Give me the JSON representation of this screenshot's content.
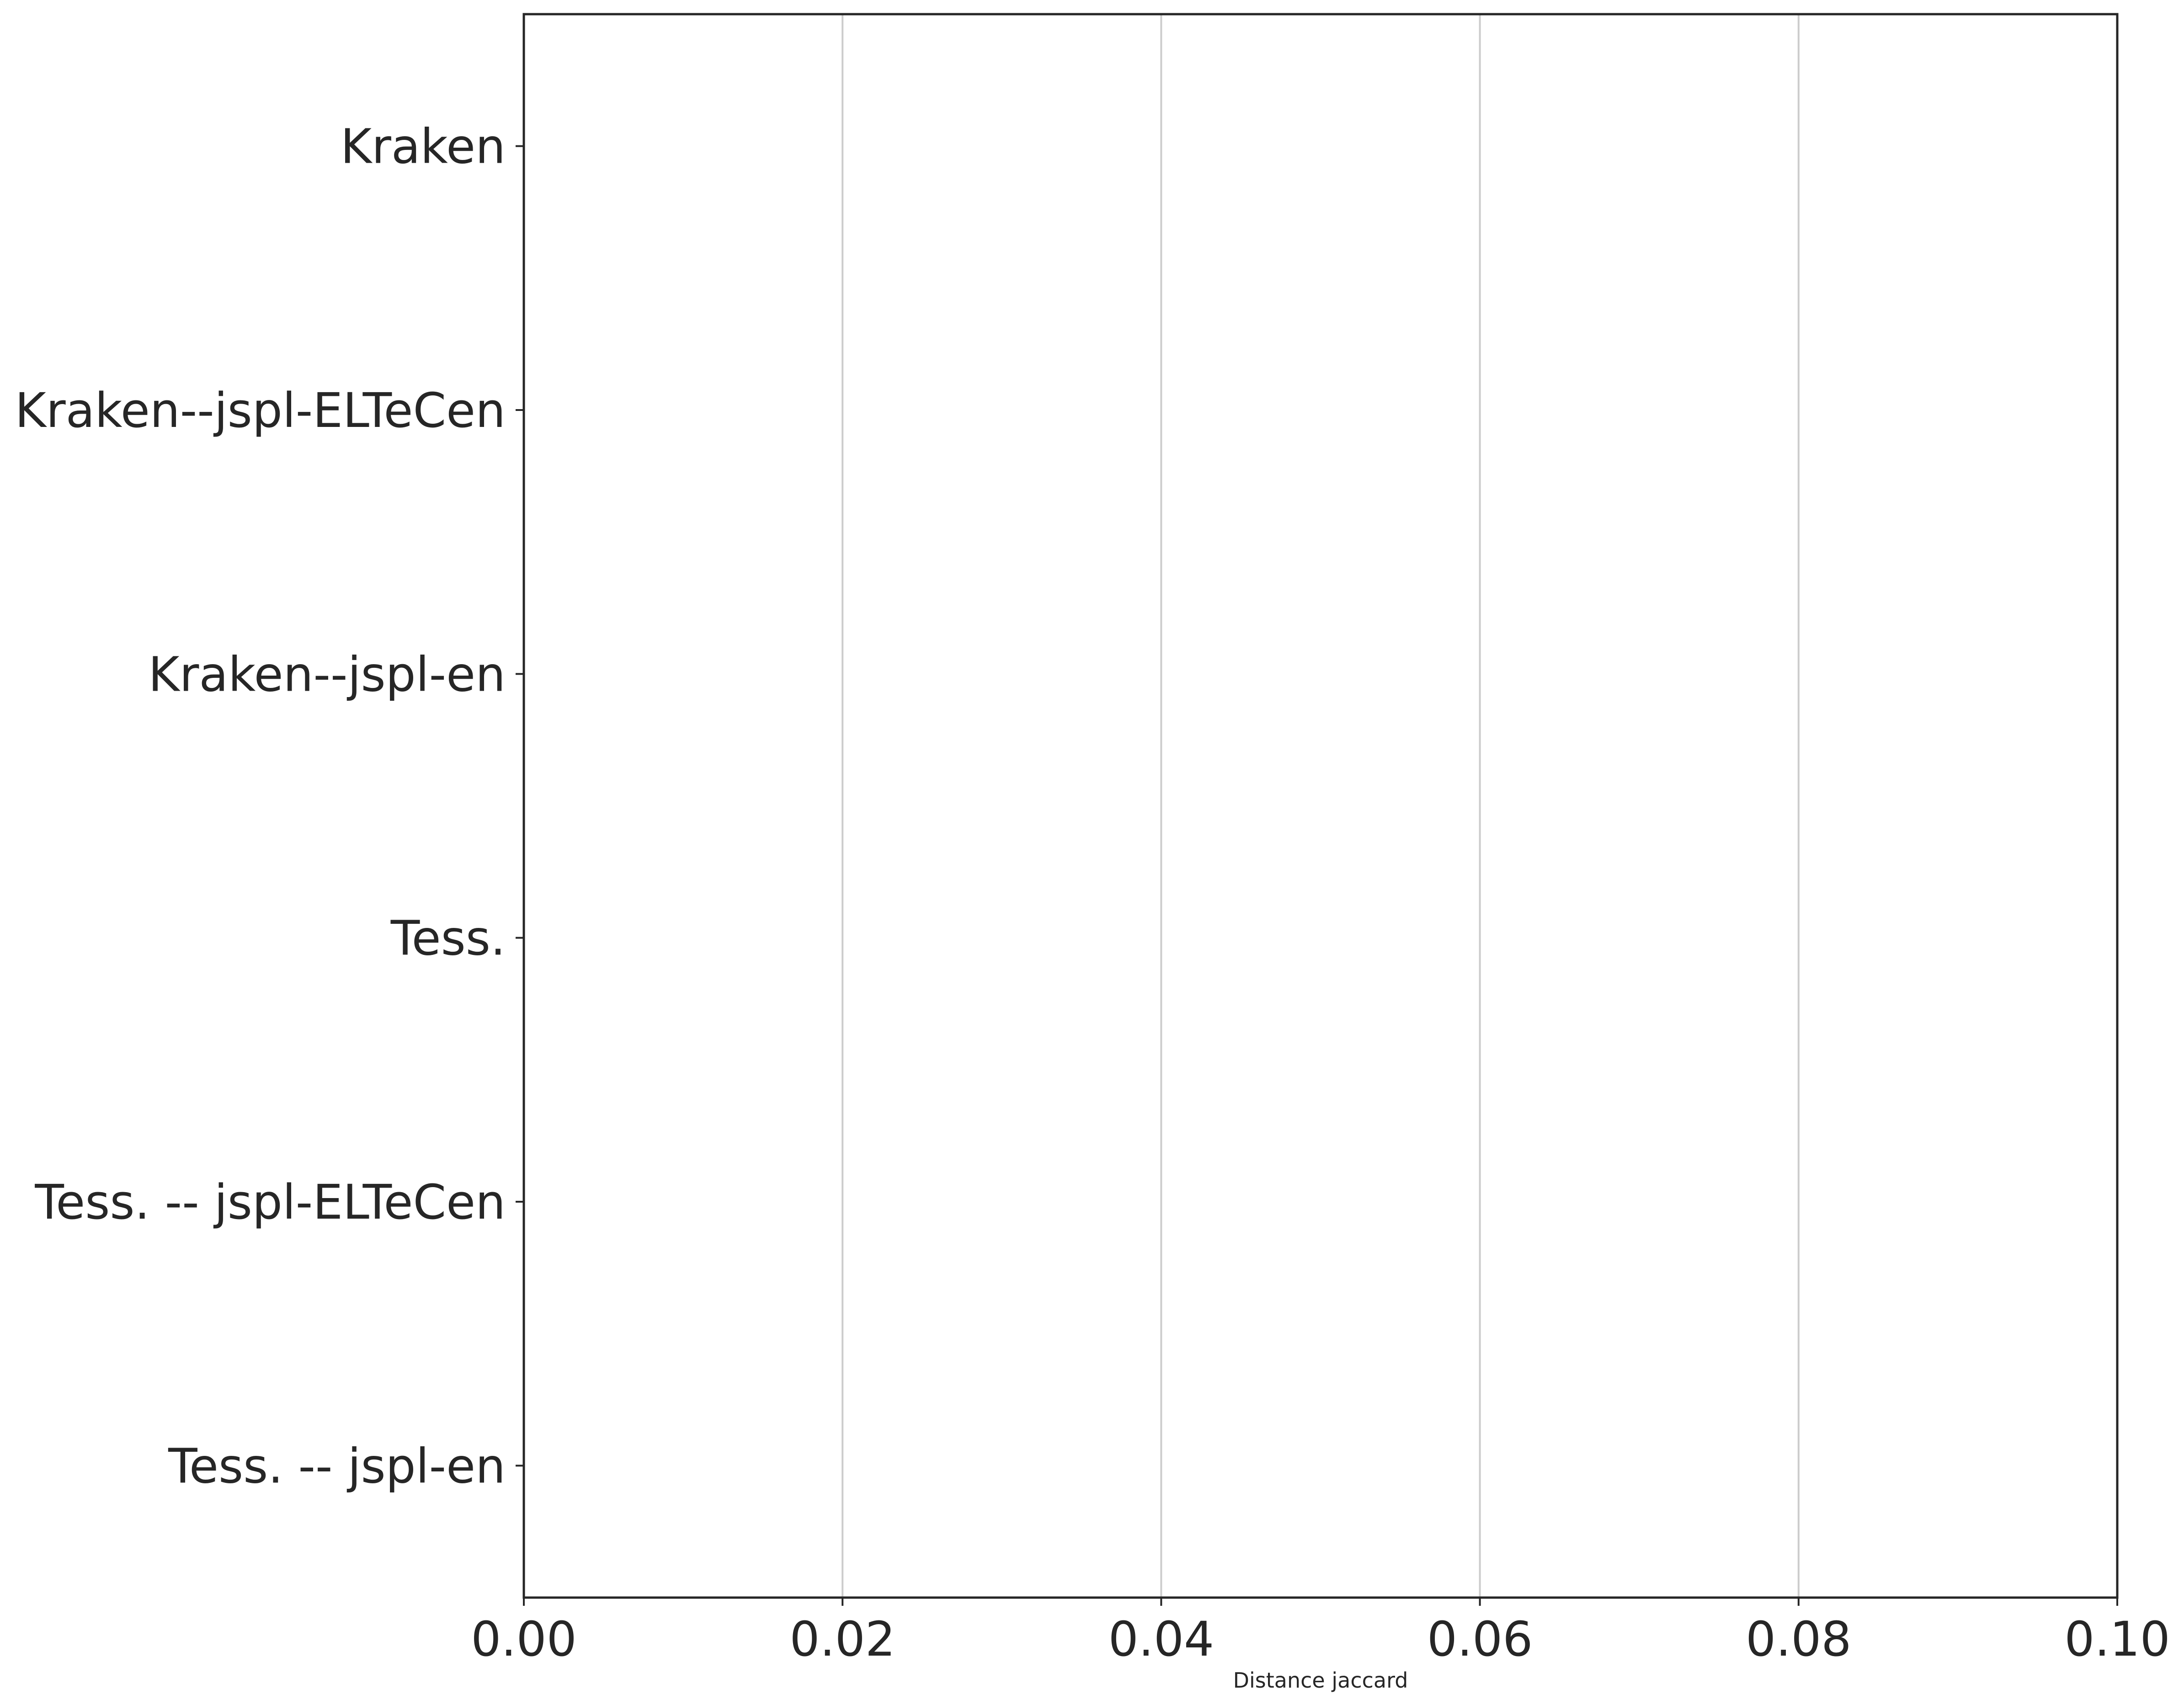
{
  "chart_data": {
    "type": "bar",
    "orientation": "horizontal",
    "categories": [
      "Kraken",
      "Kraken--jspl-ELTeCen",
      "Kraken--jspl-en",
      "Tess.",
      "Tess. -- jspl-ELTeCen",
      "Tess. -- jspl-en"
    ],
    "values": [
      0,
      0,
      0,
      0,
      0,
      0
    ],
    "xlabel": "Distance jaccard",
    "ylabel": "",
    "xlim": [
      0.0,
      0.1
    ],
    "xticks": [
      "0.00",
      "0.02",
      "0.04",
      "0.06",
      "0.08",
      "0.10"
    ],
    "grid": "vertical",
    "legend": "none"
  },
  "colors": {
    "axis": "#262626",
    "grid": "#cccccc",
    "text": "#262626",
    "background": "#ffffff"
  }
}
